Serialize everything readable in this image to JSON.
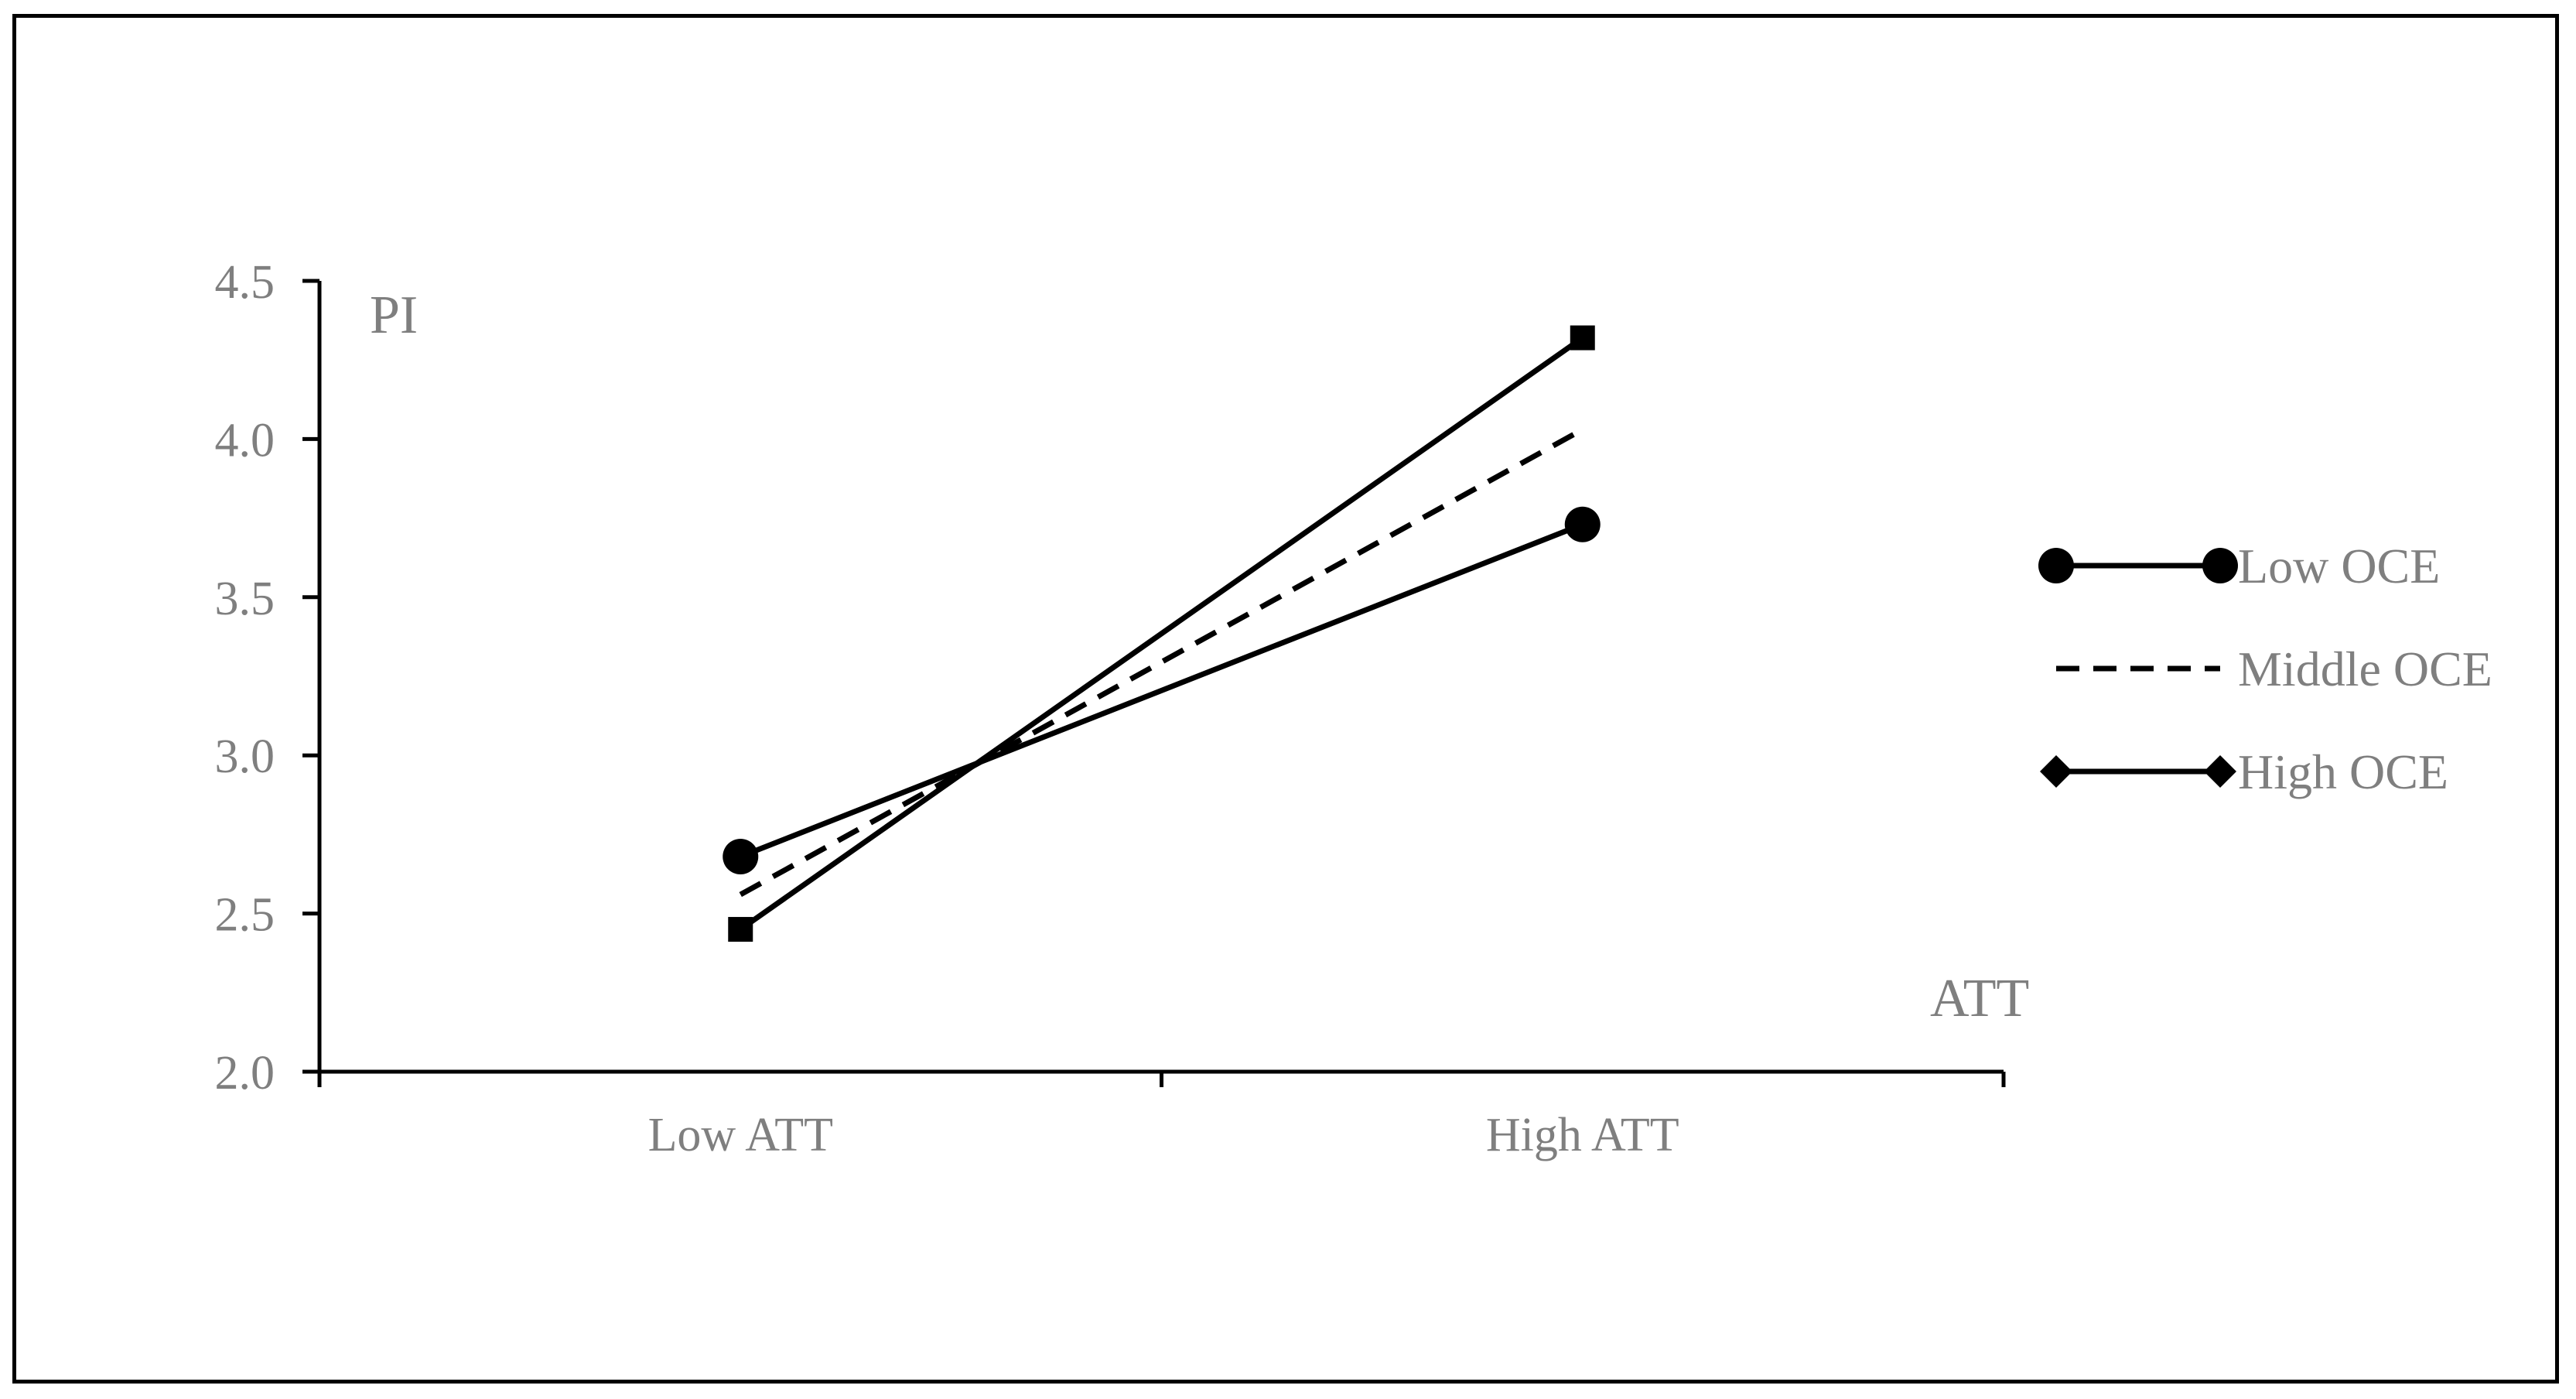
{
  "chart_data": {
    "type": "line",
    "title": "",
    "xlabel": "ATT",
    "ylabel": "PI",
    "categories": [
      "Low ATT",
      "High ATT"
    ],
    "ylim": [
      2.0,
      4.5
    ],
    "yticks": [
      "2.0",
      "2.5",
      "3.0",
      "3.5",
      "4.0",
      "4.5"
    ],
    "grid": false,
    "legend_position": "right",
    "series": [
      {
        "name": "Low OCE",
        "values": [
          2.68,
          3.73
        ],
        "line_style": "solid",
        "marker": "circle",
        "color": "#000000"
      },
      {
        "name": "Middle OCE",
        "values": [
          2.56,
          4.03
        ],
        "line_style": "dashed",
        "marker": "none",
        "color": "#000000"
      },
      {
        "name": "High OCE",
        "values": [
          2.45,
          4.32
        ],
        "line_style": "solid",
        "marker": "square",
        "legend_marker": "diamond",
        "color": "#000000"
      }
    ]
  }
}
